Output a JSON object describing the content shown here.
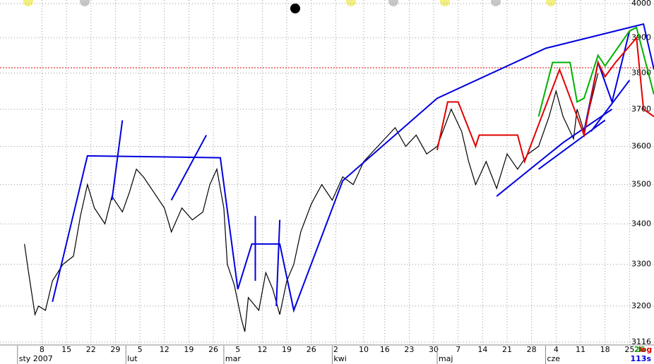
{
  "chart_data": {
    "type": "line",
    "log_scale": true,
    "grid": true,
    "ylim": [
      3116,
      4000
    ],
    "yticks": [
      3116,
      3200,
      3300,
      3400,
      3500,
      3600,
      3700,
      3800,
      3900,
      4000
    ],
    "xlim": [
      -4,
      183
    ],
    "xticks": [
      {
        "value": 8,
        "label": "8"
      },
      {
        "value": 15,
        "label": "15"
      },
      {
        "value": 22,
        "label": "22"
      },
      {
        "value": 29,
        "label": "29"
      },
      {
        "value": 36,
        "label": "5"
      },
      {
        "value": 43,
        "label": "12"
      },
      {
        "value": 50,
        "label": "19"
      },
      {
        "value": 57,
        "label": "26"
      },
      {
        "value": 64,
        "label": "5"
      },
      {
        "value": 71,
        "label": "12"
      },
      {
        "value": 78,
        "label": "19"
      },
      {
        "value": 85,
        "label": "26"
      },
      {
        "value": 92,
        "label": "2"
      },
      {
        "value": 100,
        "label": "10"
      },
      {
        "value": 106,
        "label": "16"
      },
      {
        "value": 113,
        "label": "23"
      },
      {
        "value": 120,
        "label": "30"
      },
      {
        "value": 127,
        "label": "7"
      },
      {
        "value": 134,
        "label": "14"
      },
      {
        "value": 141,
        "label": "21"
      },
      {
        "value": 148,
        "label": "28"
      },
      {
        "value": 155,
        "label": "4"
      },
      {
        "value": 162,
        "label": "11"
      },
      {
        "value": 169,
        "label": "18"
      },
      {
        "value": 176,
        "label": "25"
      }
    ],
    "months": [
      {
        "value": 1,
        "label": "sty 2007"
      },
      {
        "value": 32,
        "label": "lut"
      },
      {
        "value": 60,
        "label": "mar"
      },
      {
        "value": 91,
        "label": "kwi"
      },
      {
        "value": 121,
        "label": "maj"
      },
      {
        "value": 152,
        "label": "cze"
      }
    ],
    "series": [
      {
        "color": "#000000",
        "x": [
          3,
          4,
          6,
          7,
          9,
          11,
          14,
          17,
          19,
          21,
          23,
          26,
          28,
          31,
          33,
          35,
          37,
          40,
          43,
          45,
          48,
          51,
          54,
          56,
          58,
          60,
          61,
          63,
          65,
          66,
          67,
          70,
          72,
          74,
          76,
          78,
          80,
          82,
          85,
          88,
          91,
          94,
          97,
          100,
          103,
          106,
          109,
          112,
          115,
          118,
          121,
          125,
          128,
          130,
          132,
          135,
          138,
          141,
          144,
          147,
          150,
          153,
          155,
          157,
          160,
          161,
          163,
          165,
          167
        ],
        "values": [
          3350,
          3290,
          3180,
          3200,
          3190,
          3260,
          3300,
          3320,
          3420,
          3500,
          3440,
          3400,
          3470,
          3430,
          3480,
          3540,
          3520,
          3480,
          3440,
          3380,
          3440,
          3410,
          3430,
          3500,
          3540,
          3440,
          3300,
          3250,
          3170,
          3140,
          3220,
          3190,
          3280,
          3240,
          3180,
          3260,
          3300,
          3380,
          3450,
          3500,
          3460,
          3520,
          3500,
          3560,
          3590,
          3620,
          3650,
          3600,
          3630,
          3580,
          3600,
          3700,
          3640,
          3560,
          3500,
          3560,
          3490,
          3580,
          3540,
          3580,
          3600,
          3680,
          3750,
          3680,
          3620,
          3700,
          3640,
          3720,
          3800
        ]
      }
    ],
    "overlays": [
      {
        "color": "#0000e0",
        "x": [
          11,
          21,
          59,
          64,
          68,
          76,
          80,
          94,
          121,
          152,
          180,
          183
        ],
        "values": [
          3210,
          3575,
          3570,
          3240,
          3350,
          3350,
          3190,
          3510,
          3730,
          3870,
          3940,
          3810
        ]
      },
      {
        "color": "#0000e0",
        "x": [
          28,
          31
        ],
        "values": [
          3460,
          3670
        ]
      },
      {
        "color": "#0000e0",
        "x": [
          45,
          55
        ],
        "values": [
          3460,
          3630
        ]
      },
      {
        "color": "#0000e0",
        "x": [
          69,
          69
        ],
        "values": [
          3260,
          3420
        ]
      },
      {
        "color": "#0000e0",
        "x": [
          75,
          76
        ],
        "values": [
          3200,
          3410
        ]
      },
      {
        "color": "#0000e0",
        "x": [
          138,
          157,
          171
        ],
        "values": [
          3470,
          3610,
          3700
        ]
      },
      {
        "color": "#0000e0",
        "x": [
          150,
          169
        ],
        "values": [
          3540,
          3670
        ]
      },
      {
        "color": "#0000e0",
        "x": [
          163,
          167,
          171,
          176
        ],
        "values": [
          3640,
          3830,
          3720,
          3920
        ]
      },
      {
        "color": "#0000e0",
        "x": [
          165,
          176
        ],
        "values": [
          3640,
          3780
        ]
      },
      {
        "color": "#e00000",
        "x": [
          121,
          124,
          127,
          132,
          133,
          144,
          146,
          156,
          163,
          167,
          169,
          172,
          178,
          180,
          183
        ],
        "values": [
          3590,
          3720,
          3720,
          3600,
          3630,
          3630,
          3560,
          3810,
          3630,
          3830,
          3790,
          3830,
          3900,
          3700,
          3680
        ]
      },
      {
        "color": "#00b000",
        "x": [
          150,
          154,
          159,
          161,
          163,
          167,
          169,
          176,
          178,
          183
        ],
        "values": [
          3680,
          3830,
          3830,
          3720,
          3730,
          3850,
          3820,
          3920,
          3930,
          3740
        ]
      }
    ],
    "hlines": [
      {
        "value": 3815,
        "color": "#e00000"
      }
    ],
    "corner_labels": [
      {
        "text": "26",
        "color": "#00a000"
      },
      {
        "text": "log",
        "color": "#e00000"
      },
      {
        "text": "113s",
        "color": "#0000e0"
      }
    ]
  }
}
